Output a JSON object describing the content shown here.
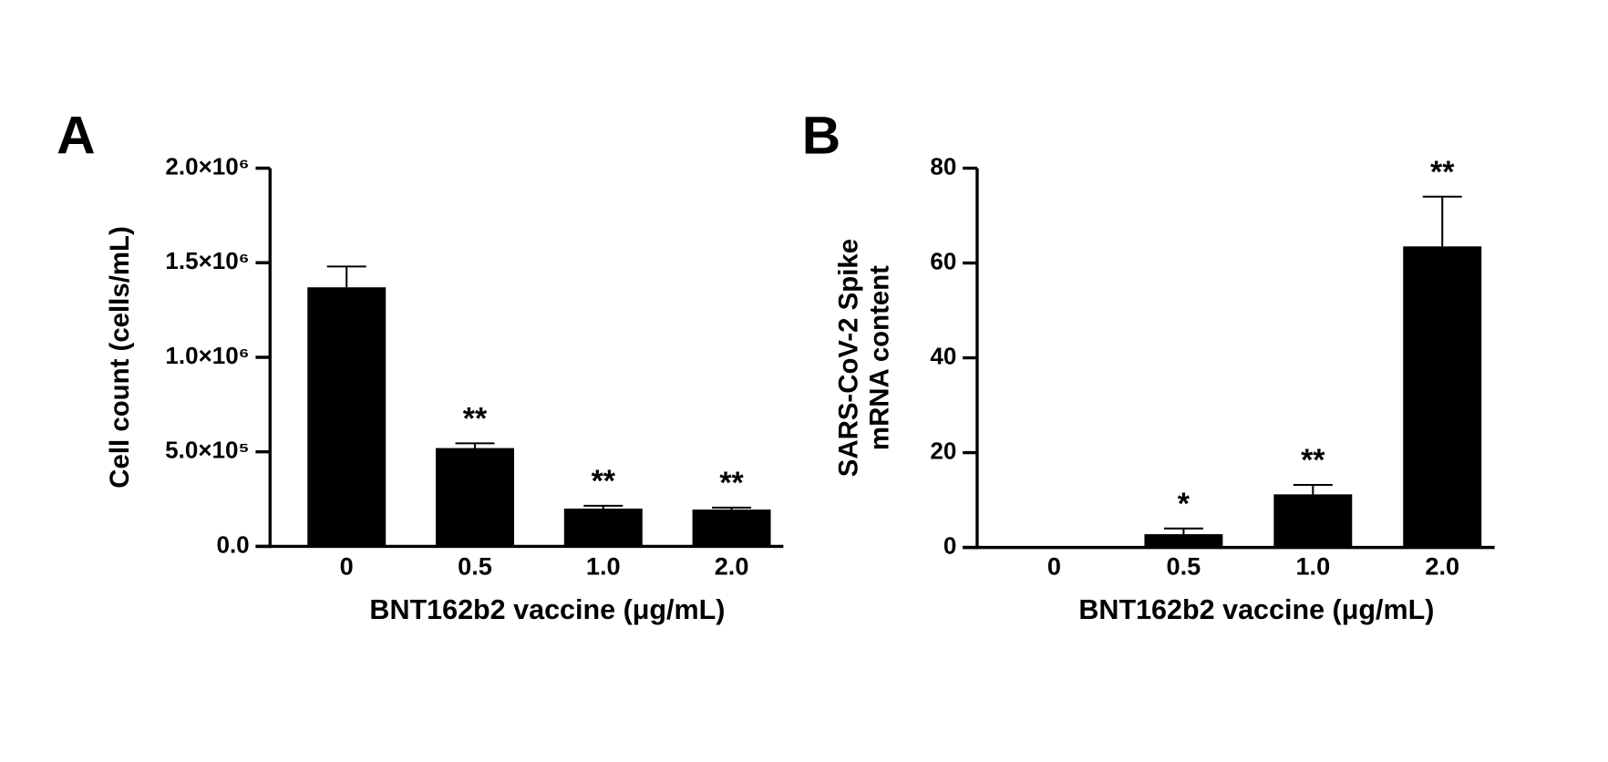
{
  "chart_data": [
    {
      "type": "bar",
      "panel": "A",
      "categories": [
        "0",
        "0.5",
        "1.0",
        "2.0"
      ],
      "values": [
        1370000,
        520000,
        200000,
        195000
      ],
      "errors": [
        110000,
        25000,
        15000,
        10000
      ],
      "annotations": [
        null,
        "**",
        "**",
        "**"
      ],
      "color": "#000000",
      "xlabel": "BNT162b2 vaccine (μg/mL)",
      "ylabel": [
        "Cell count (cells/mL)"
      ],
      "ylim": [
        0,
        2000000
      ],
      "yticks": [
        {
          "value": 0,
          "label": "0.0"
        },
        {
          "value": 500000,
          "label": "5.0×10⁵"
        },
        {
          "value": 1000000,
          "label": "1.0×10⁶"
        },
        {
          "value": 1500000,
          "label": "1.5×10⁶"
        },
        {
          "value": 2000000,
          "label": "2.0×10⁶"
        }
      ]
    },
    {
      "type": "bar",
      "panel": "B",
      "categories": [
        "0",
        "0.5",
        "1.0",
        "2.0"
      ],
      "values": [
        0,
        2.8,
        11.2,
        63.5
      ],
      "errors": [
        0,
        1.2,
        2,
        10.5
      ],
      "annotations": [
        null,
        "*",
        "**",
        "**"
      ],
      "color": "#000000",
      "xlabel": "BNT162b2 vaccine (μg/mL)",
      "ylabel": [
        "SARS-CoV-2 Spike",
        "mRNA content"
      ],
      "ylim": [
        0,
        80
      ],
      "yticks": [
        0,
        20,
        40,
        60,
        80
      ]
    }
  ]
}
